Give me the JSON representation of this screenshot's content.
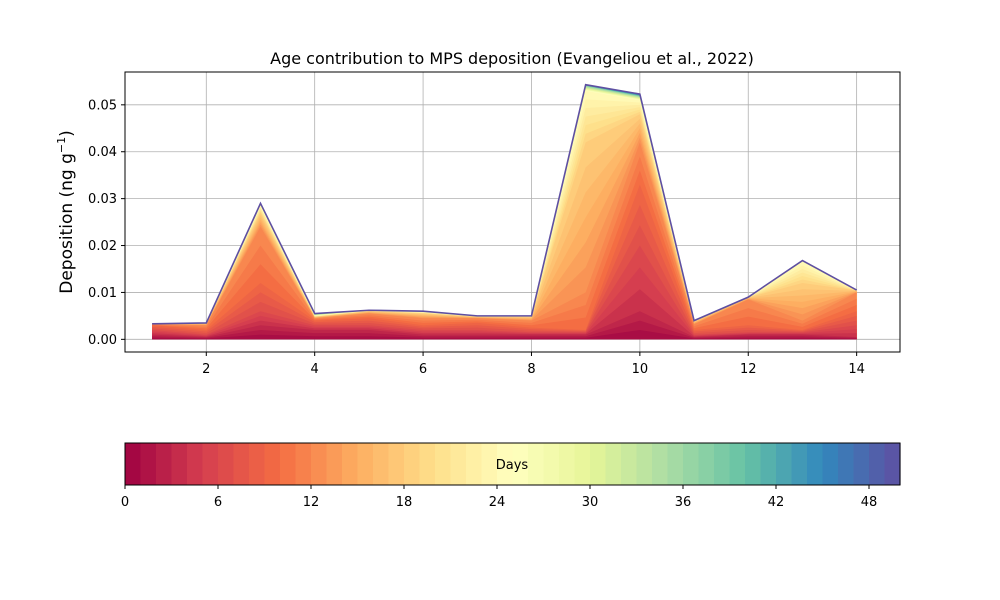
{
  "chart_data": {
    "type": "area",
    "title": "Age contribution to MPS deposition (Evangeliou et al., 2022)",
    "ylabel_main": "Deposition (ng g",
    "ylabel_sup": "−1",
    "ylabel_close": ")",
    "xlabel": "",
    "x": [
      1,
      2,
      3,
      4,
      5,
      6,
      7,
      8,
      9,
      10,
      11,
      12,
      13,
      14
    ],
    "xlim": [
      0.5,
      14.8
    ],
    "ylim": [
      -0.0027,
      0.057
    ],
    "xticks": [
      2,
      4,
      6,
      8,
      10,
      12,
      14
    ],
    "xtick_labels": [
      "2",
      "4",
      "6",
      "8",
      "10",
      "12",
      "14"
    ],
    "yticks": [
      0.0,
      0.01,
      0.02,
      0.03,
      0.04,
      0.05
    ],
    "ytick_labels": [
      "0.00",
      "0.01",
      "0.02",
      "0.03",
      "0.04",
      "0.05"
    ],
    "grid": true,
    "colormap": "Spectral",
    "colormap_stops": [
      "#9e0142",
      "#d53e4f",
      "#f46d43",
      "#fdae61",
      "#fee08b",
      "#ffffbf",
      "#e6f598",
      "#abdda4",
      "#66c2a5",
      "#3288bd",
      "#5e4fa2"
    ],
    "total": [
      0.0033,
      0.0035,
      0.029,
      0.0055,
      0.0062,
      0.006,
      0.005,
      0.005,
      0.0543,
      0.0523,
      0.004,
      0.009,
      0.0168,
      0.0105
    ],
    "bands": [
      {
        "age_days": 3,
        "values": [
          0.001,
          0.0005,
          0.003,
          0.002,
          0.002,
          0.001,
          0.001,
          0.001,
          0.001,
          0.006,
          0.0005,
          0.001,
          0.001,
          0.0005
        ]
      },
      {
        "age_days": 6,
        "values": [
          0.002,
          0.001,
          0.006,
          0.003,
          0.003,
          0.002,
          0.002,
          0.0015,
          0.0015,
          0.02,
          0.001,
          0.0015,
          0.0015,
          0.003
        ]
      },
      {
        "age_days": 9,
        "values": [
          0.003,
          0.002,
          0.012,
          0.004,
          0.0045,
          0.003,
          0.0035,
          0.0025,
          0.002,
          0.033,
          0.002,
          0.003,
          0.002,
          0.006
        ]
      },
      {
        "age_days": 12,
        "values": [
          0.0032,
          0.003,
          0.024,
          0.0045,
          0.0055,
          0.0045,
          0.0045,
          0.004,
          0.01,
          0.042,
          0.0032,
          0.0085,
          0.004,
          0.01
        ]
      },
      {
        "age_days": 18,
        "values": [
          0.0033,
          0.0034,
          0.027,
          0.0048,
          0.006,
          0.0055,
          0.0048,
          0.0048,
          0.042,
          0.048,
          0.0038,
          0.0089,
          0.012,
          0.0104
        ]
      },
      {
        "age_days": 24,
        "values": [
          0.0033,
          0.0035,
          0.0285,
          0.005,
          0.0061,
          0.0058,
          0.0049,
          0.0049,
          0.053,
          0.051,
          0.0039,
          0.009,
          0.0165,
          0.0105
        ]
      },
      {
        "age_days": 36,
        "values": [
          0.0033,
          0.0035,
          0.0289,
          0.0053,
          0.0062,
          0.0059,
          0.005,
          0.005,
          0.054,
          0.0518,
          0.004,
          0.009,
          0.0167,
          0.0105
        ]
      },
      {
        "age_days": 50,
        "values": [
          0.0033,
          0.0035,
          0.029,
          0.0055,
          0.0062,
          0.006,
          0.005,
          0.005,
          0.0543,
          0.0523,
          0.004,
          0.009,
          0.0168,
          0.0105
        ]
      }
    ],
    "colorbar": {
      "label": "Days",
      "min": 0,
      "max": 50,
      "ticks": [
        0,
        6,
        12,
        18,
        24,
        30,
        36,
        42,
        48
      ],
      "tick_labels": [
        "0",
        "6",
        "12",
        "18",
        "24",
        "30",
        "36",
        "42",
        "48"
      ]
    }
  }
}
